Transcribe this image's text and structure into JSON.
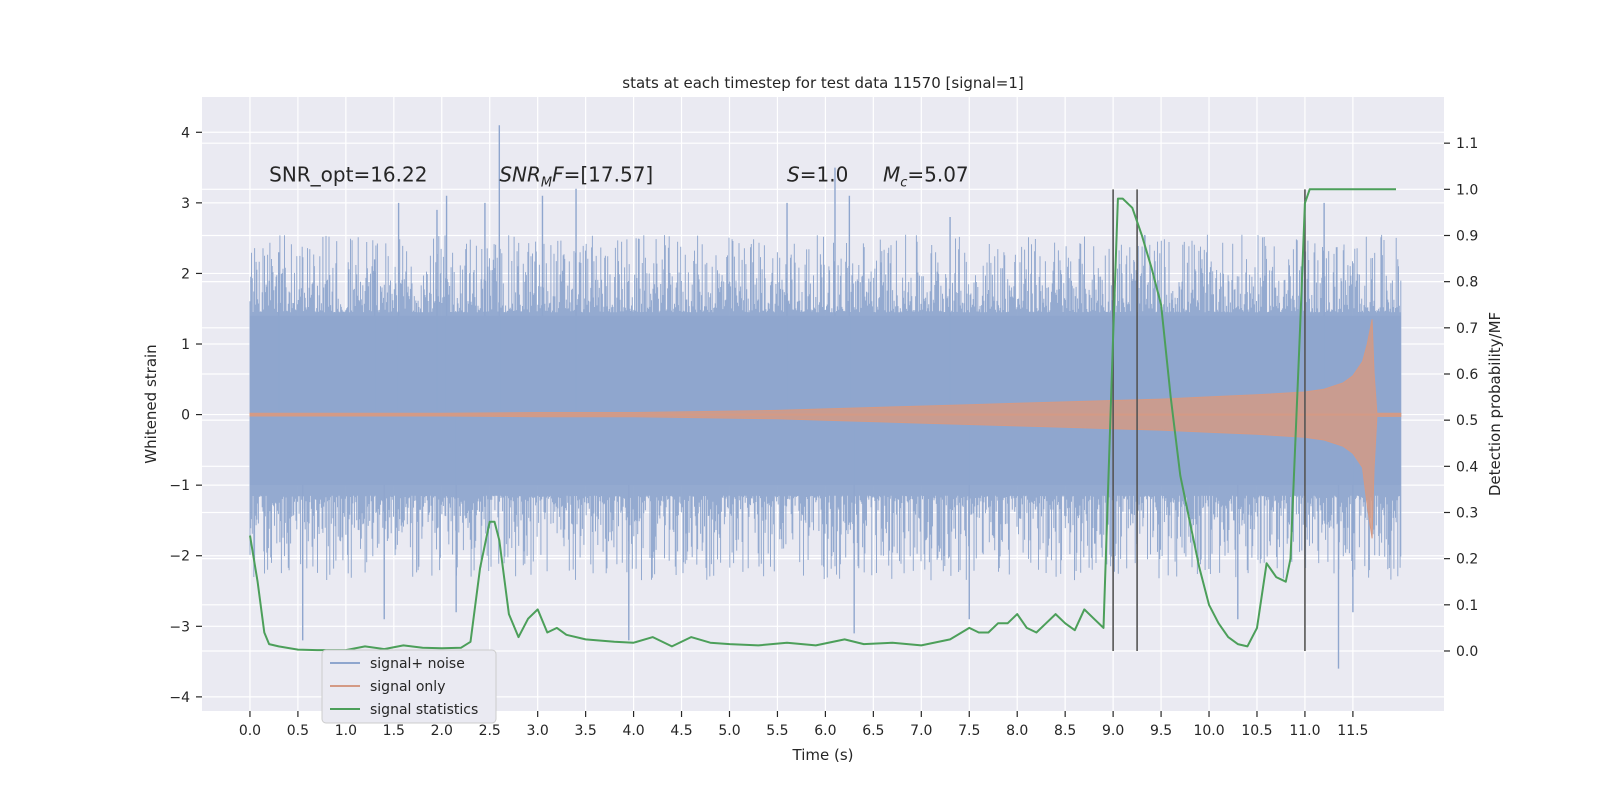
{
  "chart_data": {
    "type": "line",
    "title": "stats at each timestep for test data 11570 [signal=1]",
    "xlabel": "Time (s)",
    "ylabel": "Whitened strain",
    "y2label": "Detection probability/MF",
    "xlim": [
      -0.5,
      12.45
    ],
    "ylim": [
      -4.2,
      4.5
    ],
    "y2lim": [
      -0.13,
      1.2
    ],
    "xticks": [
      0.0,
      0.5,
      1.0,
      1.5,
      2.0,
      2.5,
      3.0,
      3.5,
      4.0,
      4.5,
      5.0,
      5.5,
      6.0,
      6.5,
      7.0,
      7.5,
      8.0,
      8.5,
      9.0,
      9.5,
      10.0,
      10.5,
      11.0,
      11.5
    ],
    "xtick_labels": [
      "0.0",
      "0.5",
      "1.0",
      "1.5",
      "2.0",
      "2.5",
      "3.0",
      "3.5",
      "4.0",
      "4.5",
      "5.0",
      "5.5",
      "6.0",
      "6.5",
      "7.0",
      "7.5",
      "8.0",
      "8.5",
      "9.0",
      "9.5",
      "10.0",
      "10.5",
      "11.0",
      "11.5"
    ],
    "yticks": [
      -4,
      -3,
      -2,
      -1,
      0,
      1,
      2,
      3,
      4
    ],
    "ytick_labels": [
      "−4",
      "−3",
      "−2",
      "−1",
      "0",
      "1",
      "2",
      "3",
      "4"
    ],
    "y2ticks": [
      0.0,
      0.1,
      0.2,
      0.3,
      0.4,
      0.5,
      0.6,
      0.7,
      0.8,
      0.9,
      1.0,
      1.1
    ],
    "y2tick_labels": [
      "0.0",
      "0.1",
      "0.2",
      "0.3",
      "0.4",
      "0.5",
      "0.6",
      "0.7",
      "0.8",
      "0.9",
      "1.0",
      "1.1"
    ],
    "grid": true,
    "legend_position": "bottom-left",
    "annotations": [
      {
        "id": "snr-opt",
        "text": "SNR_opt=16.22",
        "x": 0.2,
        "y": 3.3
      },
      {
        "id": "snr-mf",
        "text": "SNR",
        "sub": "M",
        "tail": "F=[17.57]",
        "italic": true,
        "x": 2.6,
        "y": 3.3
      },
      {
        "id": "s-value",
        "text": "S",
        "tail": "=1.0",
        "italic": true,
        "x": 5.6,
        "y": 3.3
      },
      {
        "id": "mc-value",
        "text": "M",
        "sub": "c",
        "tail": "=5.07",
        "italic": true,
        "x": 6.6,
        "y": 3.3
      }
    ],
    "vlines": {
      "x": [
        9.0,
        9.25,
        11.0
      ],
      "y2_range": [
        0.0,
        1.0
      ],
      "color": "#555555"
    },
    "series": [
      {
        "name": "signal+ noise",
        "color": "#8fa6ce",
        "axis": "y",
        "x_range": [
          0.0,
          12.0
        ],
        "envelope_core": 1.45,
        "spikes": [
          {
            "x": 0.3,
            "y": 2.3
          },
          {
            "x": 0.55,
            "y": -3.2
          },
          {
            "x": 1.3,
            "y": 2.2
          },
          {
            "x": 1.4,
            "y": -2.9
          },
          {
            "x": 1.55,
            "y": 3.0
          },
          {
            "x": 1.95,
            "y": 2.9
          },
          {
            "x": 2.05,
            "y": 3.1
          },
          {
            "x": 2.15,
            "y": -2.8
          },
          {
            "x": 2.45,
            "y": 3.0
          },
          {
            "x": 2.6,
            "y": 4.1
          },
          {
            "x": 3.05,
            "y": 3.1
          },
          {
            "x": 3.4,
            "y": 3.2
          },
          {
            "x": 3.95,
            "y": -3.2
          },
          {
            "x": 5.6,
            "y": 3.0
          },
          {
            "x": 6.1,
            "y": 3.5
          },
          {
            "x": 6.25,
            "y": 3.1
          },
          {
            "x": 6.3,
            "y": -3.1
          },
          {
            "x": 7.3,
            "y": 2.8
          },
          {
            "x": 7.5,
            "y": -2.9
          },
          {
            "x": 9.0,
            "y": 2.9
          },
          {
            "x": 10.3,
            "y": -2.9
          },
          {
            "x": 11.35,
            "y": -3.6
          },
          {
            "x": 11.2,
            "y": 3.0
          },
          {
            "x": 11.5,
            "y": -2.8
          }
        ]
      },
      {
        "name": "signal only",
        "color": "#d49a85",
        "axis": "y",
        "x": [
          0.0,
          1.0,
          2.0,
          3.0,
          4.0,
          5.0,
          5.5,
          6.0,
          6.5,
          7.0,
          7.5,
          8.0,
          8.5,
          9.0,
          9.5,
          10.0,
          10.5,
          11.0,
          11.2,
          11.4,
          11.5,
          11.6,
          11.65,
          11.7,
          11.72,
          11.75,
          12.0
        ],
        "amplitude": [
          0.02,
          0.02,
          0.02,
          0.03,
          0.03,
          0.05,
          0.06,
          0.08,
          0.1,
          0.12,
          0.14,
          0.16,
          0.18,
          0.2,
          0.22,
          0.25,
          0.28,
          0.32,
          0.36,
          0.45,
          0.55,
          0.75,
          1.0,
          1.35,
          0.6,
          0.02,
          0.02
        ]
      },
      {
        "name": "signal statistics",
        "color": "#4c9f5a",
        "axis": "y2",
        "x": [
          0.0,
          0.08,
          0.15,
          0.2,
          0.3,
          0.5,
          0.7,
          1.0,
          1.2,
          1.4,
          1.6,
          1.8,
          2.0,
          2.2,
          2.3,
          2.4,
          2.5,
          2.55,
          2.6,
          2.7,
          2.8,
          2.9,
          3.0,
          3.1,
          3.2,
          3.3,
          3.5,
          3.8,
          4.0,
          4.2,
          4.4,
          4.6,
          4.8,
          5.0,
          5.3,
          5.6,
          5.9,
          6.2,
          6.4,
          6.7,
          7.0,
          7.3,
          7.5,
          7.6,
          7.7,
          7.8,
          7.9,
          8.0,
          8.1,
          8.2,
          8.3,
          8.4,
          8.5,
          8.6,
          8.7,
          8.8,
          8.9,
          9.0,
          9.05,
          9.1,
          9.2,
          9.3,
          9.4,
          9.5,
          9.6,
          9.7,
          9.8,
          9.9,
          10.0,
          10.1,
          10.2,
          10.3,
          10.4,
          10.5,
          10.6,
          10.7,
          10.8,
          10.85,
          10.9,
          10.95,
          11.0,
          11.05,
          11.1,
          11.2,
          11.5,
          11.8,
          11.95
        ],
        "y": [
          0.25,
          0.15,
          0.04,
          0.015,
          0.01,
          0.003,
          0.002,
          0.002,
          0.01,
          0.004,
          0.012,
          0.007,
          0.006,
          0.007,
          0.02,
          0.18,
          0.28,
          0.28,
          0.24,
          0.08,
          0.03,
          0.07,
          0.09,
          0.04,
          0.05,
          0.035,
          0.025,
          0.02,
          0.018,
          0.03,
          0.01,
          0.03,
          0.018,
          0.015,
          0.012,
          0.018,
          0.012,
          0.025,
          0.015,
          0.018,
          0.012,
          0.025,
          0.05,
          0.04,
          0.04,
          0.06,
          0.06,
          0.08,
          0.05,
          0.04,
          0.06,
          0.08,
          0.06,
          0.045,
          0.09,
          0.07,
          0.05,
          0.68,
          0.98,
          0.98,
          0.96,
          0.9,
          0.83,
          0.75,
          0.55,
          0.38,
          0.28,
          0.18,
          0.1,
          0.06,
          0.03,
          0.015,
          0.01,
          0.05,
          0.19,
          0.16,
          0.15,
          0.2,
          0.45,
          0.7,
          0.97,
          1.0,
          1.0,
          1.0,
          1.0,
          1.0,
          1.0
        ]
      }
    ]
  }
}
